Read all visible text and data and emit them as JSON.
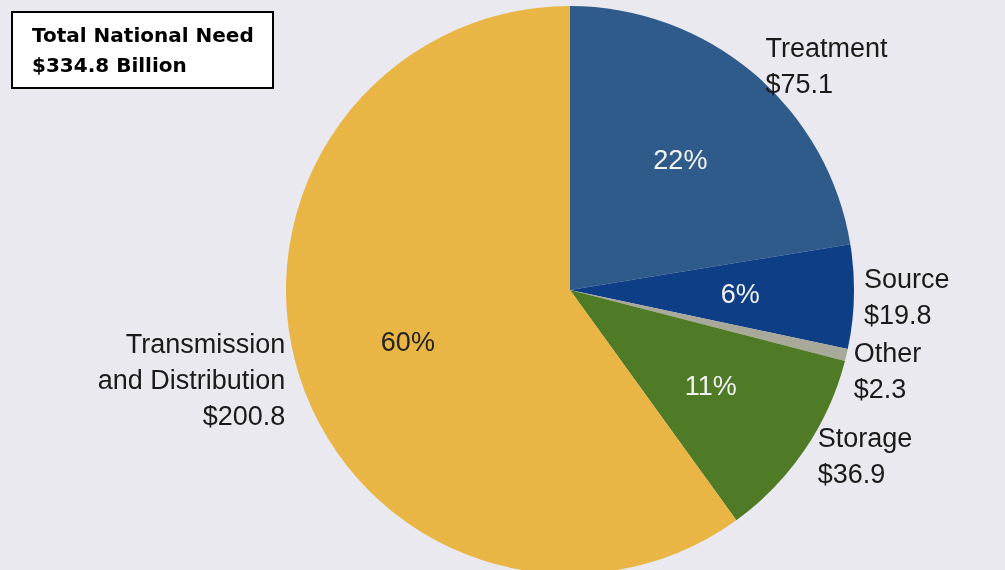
{
  "chart_data": {
    "type": "pie",
    "title": "Total National Need\n$334.8 Billion",
    "categories": [
      "Treatment",
      "Source",
      "Other",
      "Storage",
      "Transmission\nand Distribution"
    ],
    "values": [
      75.1,
      19.8,
      2.3,
      36.9,
      200.8
    ],
    "value_labels": [
      "$75.1",
      "$19.8",
      "$2.3",
      "$36.9",
      "$200.8"
    ],
    "colors": [
      "#2f5b8a",
      "#0e3f86",
      "#a9a99a",
      "#4f7b26",
      "#e9b646"
    ],
    "annotations": [
      {
        "text": "22%",
        "x": "Treatment"
      },
      {
        "text": "6%",
        "x": "Source"
      },
      {
        "text": "11%",
        "x": "Storage"
      },
      {
        "text": "60%",
        "x": "Transmission\nand Distribution"
      }
    ],
    "legend": false
  }
}
